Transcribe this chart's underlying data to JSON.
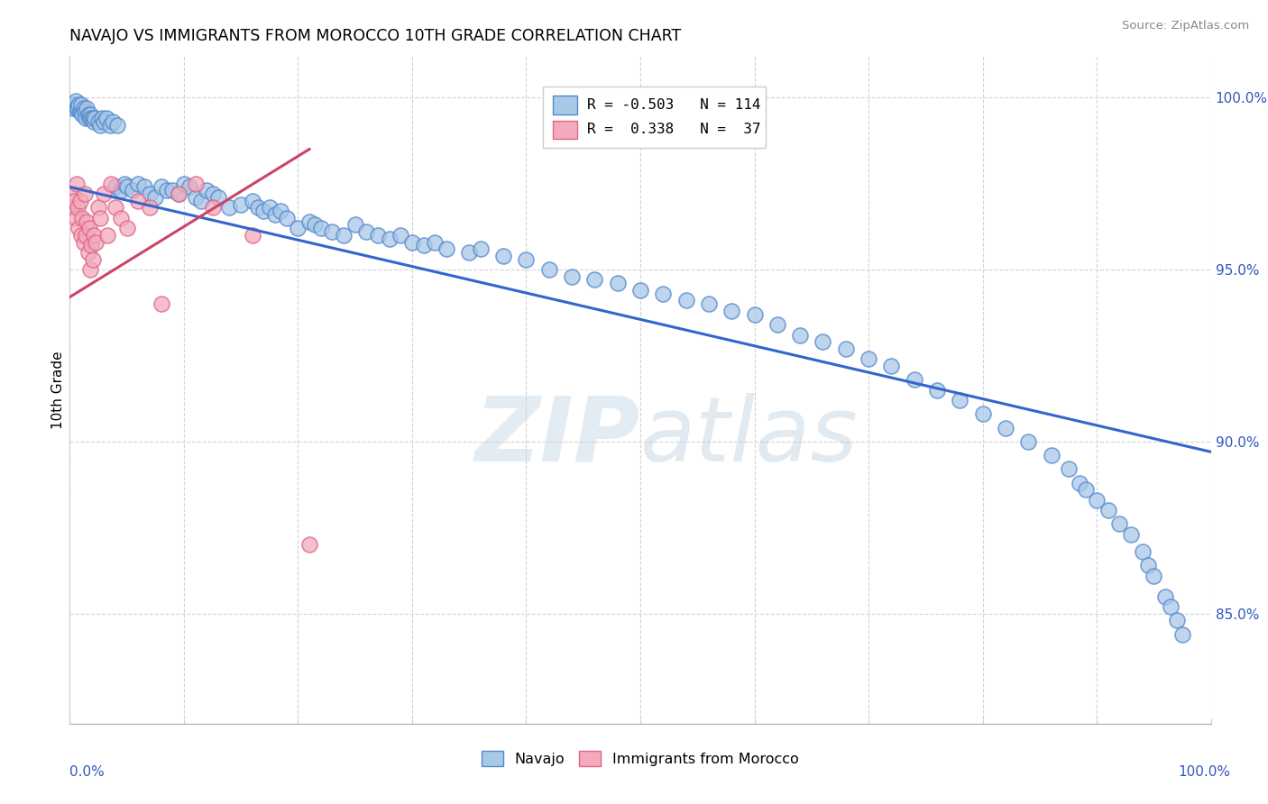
{
  "title": "NAVAJO VS IMMIGRANTS FROM MOROCCO 10TH GRADE CORRELATION CHART",
  "source": "Source: ZipAtlas.com",
  "ylabel": "10th Grade",
  "ytick_labels": [
    "85.0%",
    "90.0%",
    "95.0%",
    "100.0%"
  ],
  "ytick_values": [
    0.85,
    0.9,
    0.95,
    1.0
  ],
  "xlim": [
    0.0,
    1.0
  ],
  "ylim": [
    0.818,
    1.012
  ],
  "legend_blue_r": "R = -0.503",
  "legend_blue_n": "N = 114",
  "legend_pink_r": "R =  0.338",
  "legend_pink_n": "N =  37",
  "legend_label_blue": "Navajo",
  "legend_label_pink": "Immigrants from Morocco",
  "watermark": "ZIPatlas",
  "blue_color": "#a8c8e8",
  "pink_color": "#f4aabc",
  "blue_edge_color": "#5588cc",
  "pink_edge_color": "#dd6688",
  "blue_line_color": "#3366cc",
  "pink_line_color": "#cc4466",
  "background_color": "#ffffff",
  "blue_line_x": [
    0.0,
    1.0
  ],
  "blue_line_y": [
    0.974,
    0.897
  ],
  "pink_line_x": [
    0.0,
    0.21
  ],
  "pink_line_y": [
    0.942,
    0.985
  ],
  "navajo_x": [
    0.003,
    0.004,
    0.005,
    0.006,
    0.007,
    0.008,
    0.009,
    0.01,
    0.01,
    0.011,
    0.012,
    0.013,
    0.014,
    0.015,
    0.016,
    0.017,
    0.018,
    0.019,
    0.02,
    0.021,
    0.022,
    0.025,
    0.027,
    0.028,
    0.03,
    0.032,
    0.035,
    0.038,
    0.04,
    0.042,
    0.045,
    0.048,
    0.05,
    0.055,
    0.06,
    0.065,
    0.07,
    0.075,
    0.08,
    0.085,
    0.09,
    0.095,
    0.1,
    0.105,
    0.11,
    0.115,
    0.12,
    0.125,
    0.13,
    0.14,
    0.15,
    0.16,
    0.165,
    0.17,
    0.175,
    0.18,
    0.185,
    0.19,
    0.2,
    0.21,
    0.215,
    0.22,
    0.23,
    0.24,
    0.25,
    0.26,
    0.27,
    0.28,
    0.29,
    0.3,
    0.31,
    0.32,
    0.33,
    0.35,
    0.36,
    0.38,
    0.4,
    0.42,
    0.44,
    0.46,
    0.48,
    0.5,
    0.52,
    0.54,
    0.56,
    0.58,
    0.6,
    0.62,
    0.64,
    0.66,
    0.68,
    0.7,
    0.72,
    0.74,
    0.76,
    0.78,
    0.8,
    0.82,
    0.84,
    0.86,
    0.875,
    0.885,
    0.89,
    0.9,
    0.91,
    0.92,
    0.93,
    0.94,
    0.945,
    0.95,
    0.96,
    0.965,
    0.97,
    0.975
  ],
  "navajo_y": [
    0.997,
    0.998,
    0.999,
    0.997,
    0.997,
    0.998,
    0.996,
    0.996,
    0.998,
    0.995,
    0.997,
    0.996,
    0.994,
    0.997,
    0.995,
    0.994,
    0.995,
    0.994,
    0.994,
    0.993,
    0.994,
    0.993,
    0.992,
    0.994,
    0.993,
    0.994,
    0.992,
    0.993,
    0.974,
    0.992,
    0.973,
    0.975,
    0.974,
    0.973,
    0.975,
    0.974,
    0.972,
    0.971,
    0.974,
    0.973,
    0.973,
    0.972,
    0.975,
    0.974,
    0.971,
    0.97,
    0.973,
    0.972,
    0.971,
    0.968,
    0.969,
    0.97,
    0.968,
    0.967,
    0.968,
    0.966,
    0.967,
    0.965,
    0.962,
    0.964,
    0.963,
    0.962,
    0.961,
    0.96,
    0.963,
    0.961,
    0.96,
    0.959,
    0.96,
    0.958,
    0.957,
    0.958,
    0.956,
    0.955,
    0.956,
    0.954,
    0.953,
    0.95,
    0.948,
    0.947,
    0.946,
    0.944,
    0.943,
    0.941,
    0.94,
    0.938,
    0.937,
    0.934,
    0.931,
    0.929,
    0.927,
    0.924,
    0.922,
    0.918,
    0.915,
    0.912,
    0.908,
    0.904,
    0.9,
    0.896,
    0.892,
    0.888,
    0.886,
    0.883,
    0.88,
    0.876,
    0.873,
    0.868,
    0.864,
    0.861,
    0.855,
    0.852,
    0.848,
    0.844
  ],
  "morocco_x": [
    0.002,
    0.003,
    0.004,
    0.005,
    0.006,
    0.007,
    0.008,
    0.009,
    0.01,
    0.011,
    0.012,
    0.013,
    0.014,
    0.015,
    0.016,
    0.017,
    0.018,
    0.019,
    0.02,
    0.021,
    0.023,
    0.025,
    0.027,
    0.03,
    0.033,
    0.036,
    0.04,
    0.045,
    0.05,
    0.06,
    0.07,
    0.08,
    0.095,
    0.11,
    0.125,
    0.16,
    0.21
  ],
  "morocco_y": [
    0.968,
    0.972,
    0.97,
    0.965,
    0.975,
    0.968,
    0.962,
    0.97,
    0.96,
    0.965,
    0.958,
    0.972,
    0.96,
    0.964,
    0.955,
    0.962,
    0.95,
    0.957,
    0.953,
    0.96,
    0.958,
    0.968,
    0.965,
    0.972,
    0.96,
    0.975,
    0.968,
    0.965,
    0.962,
    0.97,
    0.968,
    0.94,
    0.972,
    0.975,
    0.968,
    0.96,
    0.87
  ]
}
